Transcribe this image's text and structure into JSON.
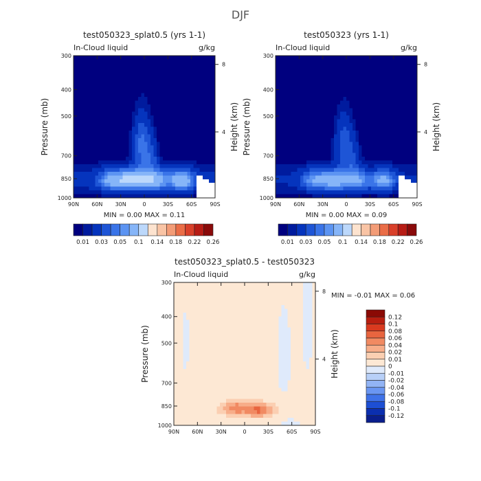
{
  "figure_title": "DJF",
  "colors": {
    "land_blank": "#ffffff",
    "axis": "#222222",
    "abs_scale": [
      "#00007f",
      "#001b9e",
      "#0534bd",
      "#1e55d6",
      "#3a74e8",
      "#5c94f2",
      "#86b5f8",
      "#bcd8fb",
      "#fde3cf",
      "#f9c4a5",
      "#f39c77",
      "#ea6d47",
      "#d9402a",
      "#b71c15",
      "#8a0a0a"
    ],
    "diff_scale": [
      "#0a1e8c",
      "#0b2fb0",
      "#1d4fd4",
      "#3f72e8",
      "#6a96f2",
      "#92b4f5",
      "#b8d0f8",
      "#dfeafb",
      "#fde8d4",
      "#fbcfb2",
      "#f7ad89",
      "#f18a62",
      "#e8653f",
      "#d93a1f",
      "#b81e10",
      "#8b0a05"
    ]
  },
  "chart_data": [
    {
      "type": "heatmap",
      "title": "test050323_splat0.5 (yrs 1-1)",
      "left_string": "In-Cloud liquid",
      "units": "g/kg",
      "ylabel": "Pressure (mb)",
      "ylabel_right": "Height (km)",
      "x_ticks": [
        "90N",
        "60N",
        "30N",
        "0",
        "30S",
        "60S",
        "90S"
      ],
      "x_values": [
        90,
        60,
        30,
        0,
        -30,
        -60,
        -90
      ],
      "y_ticks": [
        "300",
        "400",
        "500",
        "700",
        "850",
        "1000"
      ],
      "y_values": [
        300,
        400,
        500,
        700,
        850,
        1000
      ],
      "height_ticks": [
        "8",
        "4"
      ],
      "height_km": [
        8,
        4
      ],
      "min_label": "MIN =",
      "min_value": "0.00",
      "max_label": "MAX =",
      "max_value": "0.11",
      "colorbar_labels": [
        "0.01",
        "0.03",
        "0.05",
        "0.1",
        "0.14",
        "0.18",
        "0.22",
        "0.26"
      ],
      "colorbar_levels": [
        0.005,
        0.01,
        0.02,
        0.03,
        0.04,
        0.05,
        0.07,
        0.1,
        0.12,
        0.14,
        0.16,
        0.18,
        0.2,
        0.22,
        0.24,
        0.26
      ],
      "ylim": [
        1000,
        300
      ],
      "xlim": [
        90,
        -90
      ]
    },
    {
      "type": "heatmap",
      "title": "test050323 (yrs 1-1)",
      "left_string": "In-Cloud liquid",
      "units": "g/kg",
      "ylabel": "Pressure (mb)",
      "ylabel_right": "Height (km)",
      "x_ticks": [
        "90N",
        "60N",
        "30N",
        "0",
        "30S",
        "60S",
        "90S"
      ],
      "x_values": [
        90,
        60,
        30,
        0,
        -30,
        -60,
        -90
      ],
      "y_ticks": [
        "300",
        "400",
        "500",
        "700",
        "850",
        "1000"
      ],
      "y_values": [
        300,
        400,
        500,
        700,
        850,
        1000
      ],
      "height_ticks": [
        "8",
        "4"
      ],
      "height_km": [
        8,
        4
      ],
      "min_label": "MIN =",
      "min_value": "0.00",
      "max_label": "MAX =",
      "max_value": "0.09",
      "colorbar_labels": [
        "0.01",
        "0.03",
        "0.05",
        "0.1",
        "0.14",
        "0.18",
        "0.22",
        "0.26"
      ],
      "colorbar_levels": [
        0.005,
        0.01,
        0.02,
        0.03,
        0.04,
        0.05,
        0.07,
        0.1,
        0.12,
        0.14,
        0.16,
        0.18,
        0.2,
        0.22,
        0.24,
        0.26
      ],
      "ylim": [
        1000,
        300
      ],
      "xlim": [
        90,
        -90
      ]
    },
    {
      "type": "heatmap",
      "title": "test050323_splat0.5 - test050323",
      "left_string": "In-Cloud liquid",
      "units": "g/kg",
      "ylabel": "Pressure (mb)",
      "ylabel_right": "Height (km)",
      "x_ticks": [
        "90N",
        "60N",
        "30N",
        "0",
        "30S",
        "60S",
        "90S"
      ],
      "x_values": [
        90,
        60,
        30,
        0,
        -30,
        -60,
        -90
      ],
      "y_ticks": [
        "300",
        "400",
        "500",
        "700",
        "850",
        "1000"
      ],
      "y_values": [
        300,
        400,
        500,
        700,
        850,
        1000
      ],
      "height_ticks": [
        "8",
        "4"
      ],
      "height_km": [
        8,
        4
      ],
      "min_label": "MIN =",
      "min_value": "-0.01",
      "max_label": "MAX =",
      "max_value": "0.06",
      "colorbar_labels": [
        "0.12",
        "0.1",
        "0.08",
        "0.06",
        "0.04",
        "0.02",
        "0.01",
        "0",
        "-0.01",
        "-0.02",
        "-0.04",
        "-0.06",
        "-0.08",
        "-0.1",
        "-0.12"
      ],
      "colorbar_levels": [
        -0.12,
        -0.1,
        -0.08,
        -0.06,
        -0.04,
        -0.02,
        -0.01,
        0,
        0.01,
        0.02,
        0.04,
        0.06,
        0.08,
        0.1,
        0.12
      ],
      "ylim": [
        1000,
        300
      ],
      "xlim": [
        90,
        -90
      ]
    }
  ]
}
